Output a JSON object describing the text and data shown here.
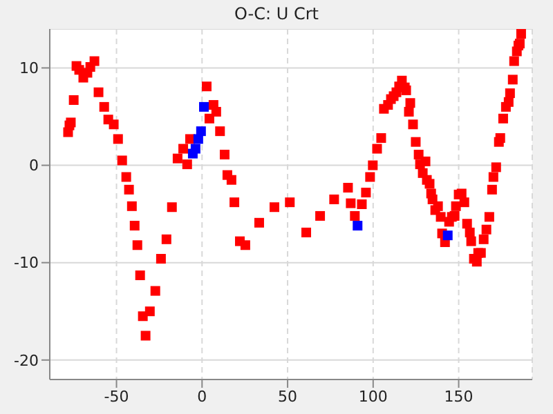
{
  "chart_data": {
    "type": "scatter",
    "title": "O-C: U Crt",
    "marker": "square",
    "grid": true,
    "xlim": [
      -89,
      193
    ],
    "ylim": [
      -22,
      14
    ],
    "xticks": [
      -50,
      0,
      50,
      100,
      150
    ],
    "yticks": [
      -20,
      -10,
      0,
      10
    ],
    "series": [
      {
        "color": "#ff0000",
        "x": [
          -78.3,
          -77.5,
          -76.7,
          -75,
          -73.4,
          -71.8,
          -69.4,
          -67,
          -65.3,
          -62.9,
          -60.5,
          -57.2,
          -54.8,
          -51.6,
          -49.1,
          -46.7,
          -44.3,
          -42.7,
          -41,
          -39.4,
          -37.8,
          -36.2,
          -34.6,
          -33,
          -30.5,
          -27.3,
          -24,
          -20.8,
          -17.6,
          -14.3,
          -11,
          -8.7,
          -7,
          2.7,
          4.3,
          6.7,
          8.3,
          10.5,
          13.2,
          14.8,
          17.2,
          18.9,
          22.1,
          25.3,
          33.4,
          42.3,
          51.3,
          60.9,
          69,
          77.2,
          85.3,
          86.9,
          89.3,
          93.4,
          95.8,
          98.2,
          99.8,
          102.3,
          104.7,
          106.3,
          108.7,
          110.4,
          112,
          113.6,
          115.2,
          116.8,
          118.5,
          119.3,
          120.9,
          121.7,
          123.3,
          124.9,
          126.6,
          127.4,
          129,
          130.6,
          131.4,
          133,
          133.9,
          134.7,
          136.3,
          137.9,
          139.5,
          140.3,
          142,
          144.4,
          146,
          147.6,
          148.4,
          150,
          151.7,
          153.3,
          154.9,
          156.5,
          157.3,
          158.9,
          160.6,
          161.4,
          163,
          164.6,
          166.2,
          167.9,
          169.5,
          170.3,
          171.9,
          173.5,
          174.3,
          176,
          177.6,
          179.2,
          180,
          181.6,
          182.4,
          184,
          184.9,
          185.7,
          186.5
        ],
        "values": [
          3.4,
          4.1,
          4.4,
          6.7,
          10.2,
          9.8,
          9,
          9.5,
          10.1,
          10.7,
          7.5,
          6,
          4.7,
          4.2,
          2.7,
          0.5,
          -1.2,
          -2.5,
          -4.2,
          -6.2,
          -8.2,
          -11.3,
          -15.5,
          -17.5,
          -15,
          -12.9,
          -9.6,
          -7.6,
          -4.3,
          0.7,
          1.7,
          0.1,
          2.7,
          8.1,
          4.8,
          6.2,
          5.5,
          3.5,
          1.1,
          -1,
          -1.5,
          -3.8,
          -7.8,
          -8.2,
          -5.9,
          -4.3,
          -3.8,
          -6.9,
          -5.2,
          -3.5,
          -2.3,
          -3.9,
          -5.2,
          -4,
          -2.8,
          -1.2,
          0,
          1.7,
          2.8,
          5.8,
          6.2,
          6.8,
          7.1,
          7.5,
          8.1,
          8.7,
          8,
          7.7,
          5.5,
          6.4,
          4.2,
          2.4,
          1.1,
          0.1,
          -0.8,
          0.4,
          -1.5,
          -1.9,
          -2.9,
          -3.5,
          -4.6,
          -4.2,
          -5.3,
          -7,
          -7.9,
          -5.8,
          -5.3,
          -5.2,
          -4.2,
          -3,
          -2.9,
          -3.8,
          -6,
          -6.9,
          -7.8,
          -9.6,
          -9.9,
          -9,
          -9,
          -7.6,
          -6.6,
          -5.3,
          -2.5,
          -1.2,
          -0.2,
          2.4,
          2.8,
          4.8,
          6,
          6.5,
          7.4,
          8.8,
          10.7,
          11.7,
          12.3,
          12.5,
          13.5
        ]
      },
      {
        "color": "#0000ff",
        "x": [
          -5.4,
          -3.8,
          -2.2,
          -0.6,
          1.1,
          90.9,
          143.6
        ],
        "values": [
          1.2,
          1.7,
          2.7,
          3.5,
          6,
          -6.2,
          -7.2
        ]
      }
    ]
  }
}
